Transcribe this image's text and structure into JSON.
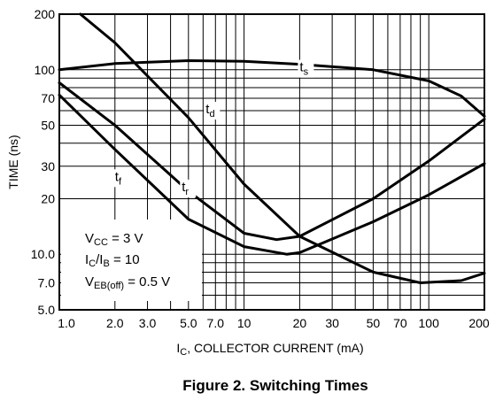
{
  "chart_data": {
    "type": "line",
    "title": "",
    "caption": "Figure 2. Switching Times",
    "xlabel": {
      "main": "I",
      "sub": "C",
      "rest": ", COLLECTOR CURRENT (mA)"
    },
    "ylabel": "TIME (ns)",
    "x_scale": "log",
    "y_scale": "log",
    "xlim": [
      1,
      200
    ],
    "ylim": [
      5,
      200
    ],
    "grid": true,
    "x_ticks": [
      {
        "v": 1,
        "label": "1.0"
      },
      {
        "v": 2,
        "label": "2.0"
      },
      {
        "v": 3,
        "label": "3.0"
      },
      {
        "v": 5,
        "label": "5.0"
      },
      {
        "v": 7,
        "label": "7.0"
      },
      {
        "v": 10,
        "label": "10"
      },
      {
        "v": 20,
        "label": "20"
      },
      {
        "v": 30,
        "label": "30"
      },
      {
        "v": 50,
        "label": "50"
      },
      {
        "v": 70,
        "label": "70"
      },
      {
        "v": 100,
        "label": "100"
      },
      {
        "v": 200,
        "label": "200"
      }
    ],
    "y_ticks": [
      {
        "v": 5,
        "label": "5.0"
      },
      {
        "v": 7,
        "label": "7.0"
      },
      {
        "v": 10,
        "label": "10.0"
      },
      {
        "v": 20,
        "label": "20"
      },
      {
        "v": 30,
        "label": "30"
      },
      {
        "v": 50,
        "label": "50"
      },
      {
        "v": 70,
        "label": "70"
      },
      {
        "v": 100,
        "label": "100"
      },
      {
        "v": 200,
        "label": "200"
      }
    ],
    "series": [
      {
        "name": "ts",
        "label_main": "t",
        "label_sub": "s",
        "label_at": [
          20,
          98
        ],
        "x": [
          1,
          2,
          5,
          10,
          20,
          50,
          100,
          150,
          200
        ],
        "y": [
          100,
          108,
          112,
          111,
          107,
          100,
          87,
          72,
          56
        ]
      },
      {
        "name": "td",
        "label_main": "t",
        "label_sub": "d",
        "label_at": [
          6.2,
          58
        ],
        "x": [
          1.3,
          2,
          5,
          10,
          20,
          50,
          90,
          150,
          200
        ],
        "y": [
          200,
          140,
          55,
          24,
          12.5,
          8.0,
          7.0,
          7.2,
          7.9
        ]
      },
      {
        "name": "tr",
        "label_main": "t",
        "label_sub": "r",
        "label_at": [
          4.6,
          22
        ],
        "x": [
          1,
          2,
          5,
          10,
          15,
          20,
          50,
          100,
          200
        ],
        "y": [
          85,
          50,
          22,
          13,
          12,
          12.5,
          20,
          32,
          54
        ]
      },
      {
        "name": "tf",
        "label_main": "t",
        "label_sub": "f",
        "label_at": [
          2.0,
          25
        ],
        "x": [
          1,
          2,
          5,
          10,
          17,
          20,
          50,
          100,
          200
        ],
        "y": [
          73,
          37,
          15.5,
          11,
          10,
          10.2,
          15,
          21,
          31
        ]
      }
    ],
    "annotations": [
      {
        "main": "V",
        "sub": "CC",
        "rest": " = 3 V"
      },
      {
        "main": "I",
        "sub": "C",
        "mid": "/I",
        "sub2": "B",
        "rest": " = 10"
      },
      {
        "main": "V",
        "sub": "EB(off)",
        "rest": " = 0.5 V"
      }
    ]
  }
}
